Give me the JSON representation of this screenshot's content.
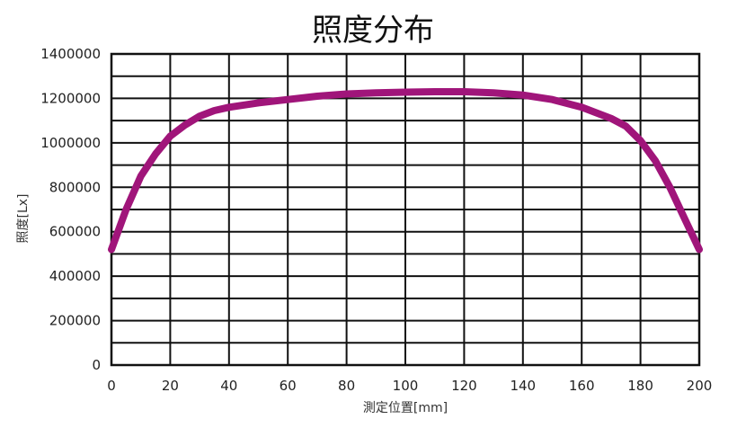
{
  "chart_data": {
    "type": "line",
    "title": "照度分布",
    "xlabel": "測定位置[mm]",
    "ylabel": "照度[Lx]",
    "xlim": [
      0,
      200
    ],
    "ylim": [
      0,
      1400000
    ],
    "x_ticks": [
      "0",
      "20",
      "40",
      "60",
      "80",
      "100",
      "120",
      "140",
      "160",
      "180",
      "200"
    ],
    "y_ticks": [
      "0",
      "200000",
      "400000",
      "600000",
      "800000",
      "1000000",
      "1200000",
      "1400000"
    ],
    "grid": true,
    "series": [
      {
        "color": "#a0157a",
        "x": [
          0,
          5,
          10,
          15,
          20,
          25,
          30,
          35,
          40,
          50,
          60,
          70,
          80,
          90,
          100,
          110,
          120,
          130,
          140,
          150,
          160,
          170,
          175,
          180,
          185,
          190,
          195,
          200
        ],
        "y": [
          520000,
          700000,
          850000,
          950000,
          1030000,
          1080000,
          1120000,
          1145000,
          1160000,
          1180000,
          1195000,
          1210000,
          1220000,
          1225000,
          1228000,
          1230000,
          1230000,
          1225000,
          1215000,
          1195000,
          1160000,
          1110000,
          1075000,
          1010000,
          920000,
          800000,
          660000,
          520000
        ]
      }
    ]
  }
}
